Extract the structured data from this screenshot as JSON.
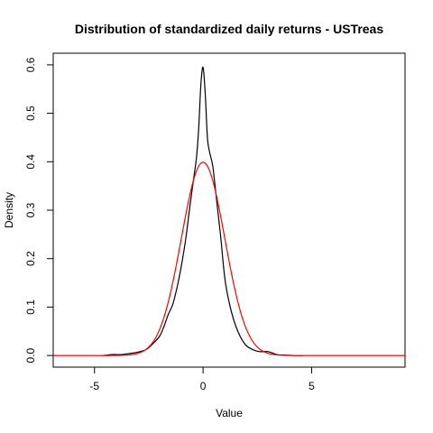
{
  "chart_data": {
    "type": "line",
    "title": "Distribution of standardized daily returns - USTreas",
    "xlabel": "Value",
    "ylabel": "Density",
    "xlim": [
      -6.9,
      9.3
    ],
    "ylim": [
      -0.024,
      0.624
    ],
    "xticks": [
      -5,
      0,
      5
    ],
    "yticks": [
      0.0,
      0.1,
      0.2,
      0.3,
      0.4,
      0.5,
      0.6
    ],
    "ytick_labels": [
      "0.0",
      "0.1",
      "0.2",
      "0.3",
      "0.4",
      "0.5",
      "0.6"
    ],
    "grid": false,
    "legend": "none",
    "series": [
      {
        "color": "#000000",
        "x": [
          -4.6,
          -4.2,
          -3.8,
          -3.4,
          -3.0,
          -2.6,
          -2.3,
          -2.0,
          -1.8,
          -1.6,
          -1.4,
          -1.2,
          -1.0,
          -0.8,
          -0.6,
          -0.45,
          -0.3,
          -0.2,
          -0.1,
          0.0,
          0.1,
          0.2,
          0.3,
          0.45,
          0.6,
          0.8,
          1.0,
          1.2,
          1.4,
          1.6,
          1.8,
          2.0,
          2.3,
          2.6,
          3.0,
          3.4,
          3.8,
          4.2,
          4.6
        ],
        "y": [
          0.0,
          0.002,
          0.002,
          0.004,
          0.007,
          0.013,
          0.025,
          0.04,
          0.06,
          0.085,
          0.105,
          0.14,
          0.185,
          0.24,
          0.31,
          0.36,
          0.41,
          0.47,
          0.56,
          0.595,
          0.54,
          0.45,
          0.42,
          0.39,
          0.33,
          0.25,
          0.16,
          0.11,
          0.075,
          0.05,
          0.032,
          0.02,
          0.012,
          0.008,
          0.008,
          0.002,
          0.001,
          0.0,
          0.0
        ]
      },
      {
        "color": "#ff0000",
        "function": "standard_normal_density"
      }
    ]
  }
}
